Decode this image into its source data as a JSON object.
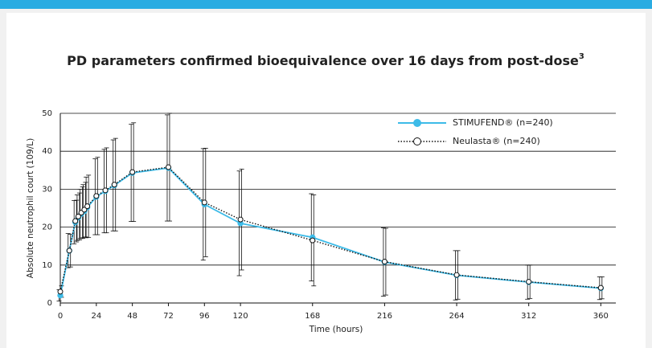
{
  "chart_data": {
    "type": "line",
    "title": "PD parameters confirmed bioequivalence over 16 days from post-dose",
    "title_superscript": "3",
    "x_label": "Time (hours)",
    "y_label": "Absolute neutrophil court (109/L)",
    "x": [
      0,
      6,
      10,
      12,
      14,
      16,
      18,
      24,
      30,
      36,
      48,
      72,
      96,
      120,
      168,
      216,
      264,
      312,
      360
    ],
    "xlim": [
      0,
      370
    ],
    "xticks": [
      0,
      24,
      48,
      72,
      96,
      120,
      168,
      216,
      264,
      312,
      360
    ],
    "ylim": [
      0,
      50
    ],
    "yticks": [
      0,
      10,
      20,
      30,
      40,
      50
    ],
    "grid": true,
    "legend": "upper right",
    "series": [
      {
        "name": "STIMUFEND® (n=240)",
        "color": "#3dbbe8",
        "style": "solid",
        "marker": "filled",
        "values": [
          2.0,
          13.8,
          21.3,
          22.5,
          23.5,
          24.2,
          25.2,
          28.0,
          29.5,
          31.0,
          34.3,
          35.6,
          26.0,
          21.0,
          17.3,
          10.8,
          7.3,
          5.5,
          3.9
        ],
        "errors": [
          1.5,
          4.5,
          5.7,
          6.0,
          6.5,
          7.0,
          8.0,
          10.0,
          11.0,
          12.0,
          12.8,
          14.0,
          14.7,
          13.8,
          11.5,
          9.0,
          6.5,
          4.5,
          3.0
        ]
      },
      {
        "name": "Neulasta® (n=240)",
        "color": "#111111",
        "style": "dotted",
        "marker": "open",
        "values": [
          3.0,
          13.8,
          21.6,
          22.8,
          23.8,
          24.6,
          25.5,
          28.2,
          29.7,
          31.2,
          34.5,
          35.8,
          26.5,
          22.0,
          16.5,
          10.9,
          7.4,
          5.6,
          4.0
        ],
        "errors": [
          1.5,
          4.3,
          5.5,
          6.2,
          6.8,
          7.2,
          8.2,
          10.2,
          11.2,
          12.2,
          13.0,
          14.2,
          14.3,
          13.3,
          12.0,
          8.8,
          6.4,
          4.4,
          2.9
        ]
      }
    ]
  }
}
